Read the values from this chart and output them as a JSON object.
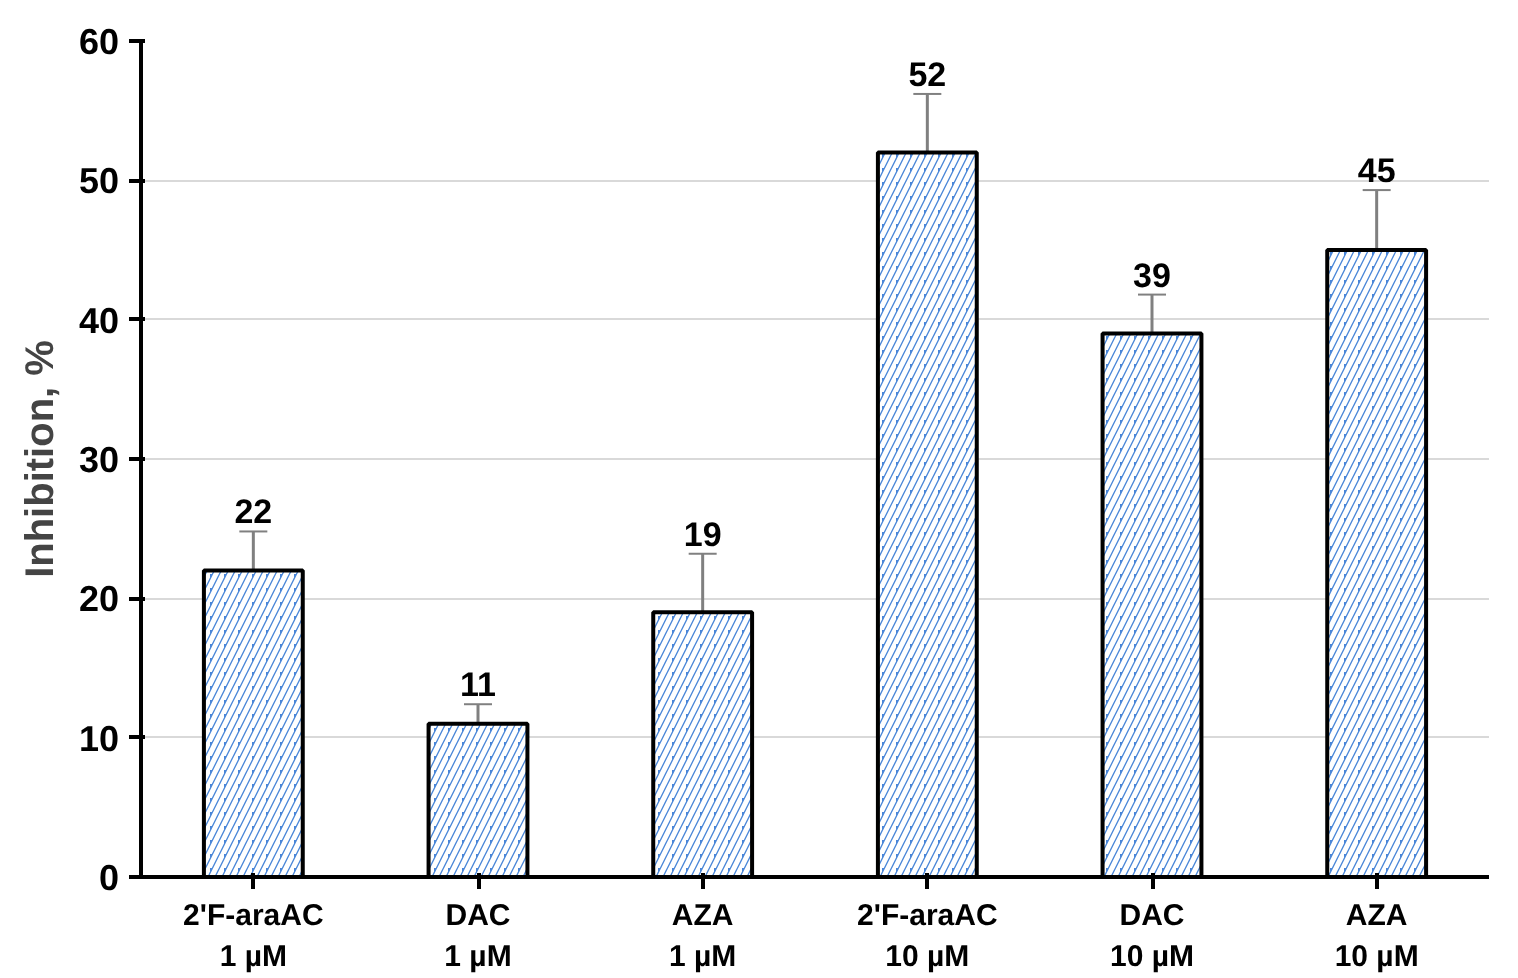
{
  "chart_data": {
    "type": "bar",
    "ylabel": "Inhibition, %",
    "categories": [
      "2'F-araAC\n1 µM",
      "DAC\n1 µM",
      "AZA\n1 µM",
      "2'F-araAC\n10 µM",
      "DAC\n10 µM",
      "AZA\n10 µM"
    ],
    "values": [
      22,
      11,
      19,
      52,
      39,
      45
    ],
    "errors": [
      2.8,
      1.4,
      4.2,
      4.2,
      2.8,
      4.3
    ],
    "color": "#4a86d8",
    "ylim": [
      0,
      60
    ],
    "yticks": [
      0,
      10,
      20,
      30,
      40,
      50,
      60
    ],
    "grid": "y",
    "data_labels": true
  }
}
